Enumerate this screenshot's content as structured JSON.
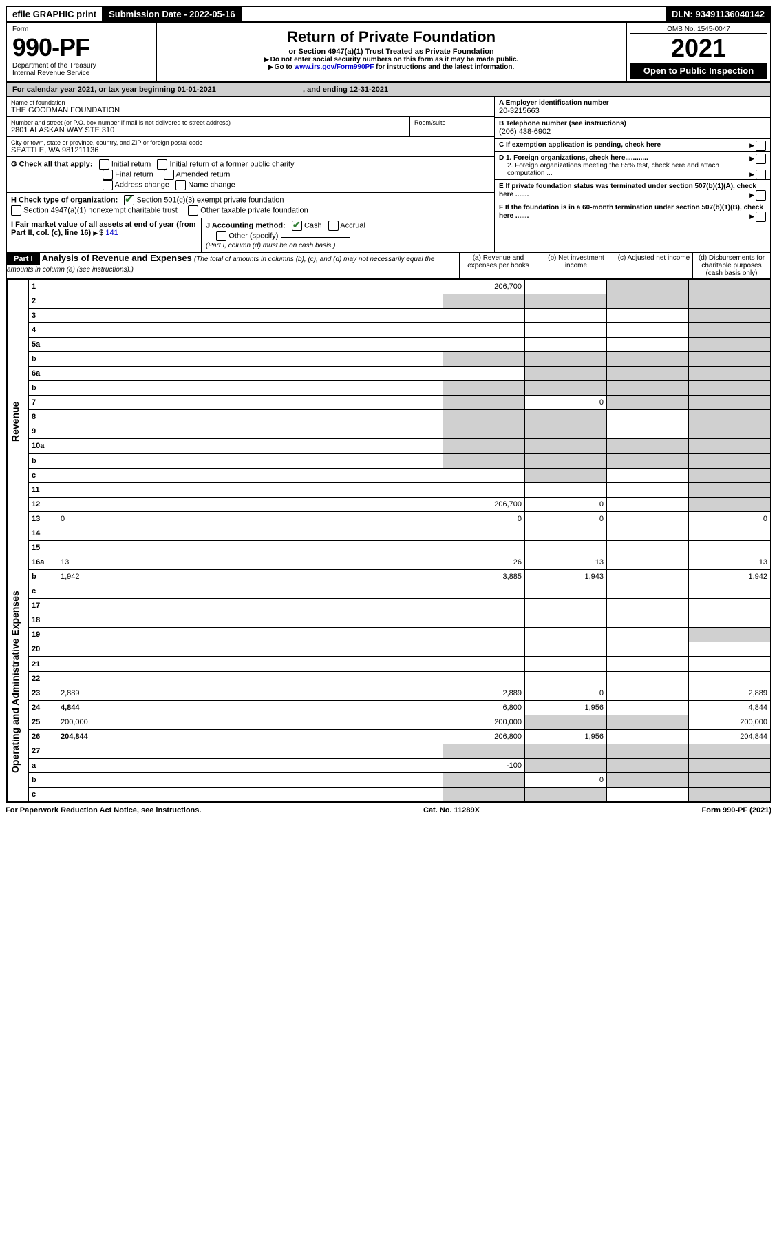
{
  "topbar": {
    "efile": "efile GRAPHIC print",
    "submission_label": "Submission Date - 2022-05-16",
    "dln": "DLN: 93491136040142"
  },
  "header": {
    "form_word": "Form",
    "form_number": "990-PF",
    "dept1": "Department of the Treasury",
    "dept2": "Internal Revenue Service",
    "title": "Return of Private Foundation",
    "subtitle": "or Section 4947(a)(1) Trust Treated as Private Foundation",
    "note1": "Do not enter social security numbers on this form as it may be made public.",
    "note2_pre": "Go to ",
    "note2_link": "www.irs.gov/Form990PF",
    "note2_post": " for instructions and the latest information.",
    "omb": "OMB No. 1545-0047",
    "year": "2021",
    "open": "Open to Public Inspection"
  },
  "calendar_line": {
    "text_a": "For calendar year 2021, or tax year beginning 01-01-2021",
    "text_b": ", and ending 12-31-2021"
  },
  "identity": {
    "name_label": "Name of foundation",
    "name": "THE GOODMAN FOUNDATION",
    "street_label": "Number and street (or P.O. box number if mail is not delivered to street address)",
    "street": "2801 ALASKAN WAY STE 310",
    "room_label": "Room/suite",
    "city_label": "City or town, state or province, country, and ZIP or foreign postal code",
    "city": "SEATTLE, WA  981211136",
    "ein_label": "A Employer identification number",
    "ein": "20-3215663",
    "phone_label": "B Telephone number (see instructions)",
    "phone": "(206) 438-6902",
    "c_label": "C If exemption application is pending, check here",
    "d1_label": "D 1. Foreign organizations, check here............",
    "d2_label": "2. Foreign organizations meeting the 85% test, check here and attach computation ...",
    "e_label": "E  If private foundation status was terminated under section 507(b)(1)(A), check here .......",
    "f_label": "F  If the foundation is in a 60-month termination under section 507(b)(1)(B), check here .......",
    "g_label": "G Check all that apply:",
    "g_opts": {
      "initial": "Initial return",
      "initial_former": "Initial return of a former public charity",
      "final": "Final return",
      "amended": "Amended return",
      "address": "Address change",
      "name": "Name change"
    },
    "h_label": "H Check type of organization:",
    "h_501c3": "Section 501(c)(3) exempt private foundation",
    "h_4947": "Section 4947(a)(1) nonexempt charitable trust",
    "h_other": "Other taxable private foundation",
    "i_label": "I Fair market value of all assets at end of year (from Part II, col. (c), line 16)",
    "i_value": "141",
    "j_label": "J Accounting method:",
    "j_cash": "Cash",
    "j_accrual": "Accrual",
    "j_other": "Other (specify)",
    "j_note": "(Part I, column (d) must be on cash basis.)"
  },
  "part1": {
    "label": "Part I",
    "title": "Analysis of Revenue and Expenses",
    "title_note": "(The total of amounts in columns (b), (c), and (d) may not necessarily equal the amounts in column (a) (see instructions).)",
    "col_a": "(a)  Revenue and expenses per books",
    "col_b": "(b)  Net investment income",
    "col_c": "(c)  Adjusted net income",
    "col_d": "(d)  Disbursements for charitable purposes (cash basis only)"
  },
  "side_labels": {
    "revenue": "Revenue",
    "opex": "Operating and Administrative Expenses"
  },
  "lines": [
    {
      "n": "1",
      "d": "",
      "a": "206,700",
      "b": "",
      "c": "",
      "d_shade": true,
      "c_shade": true
    },
    {
      "n": "2",
      "d": "",
      "a": "",
      "b": "",
      "c": "",
      "a_shade": true,
      "b_shade": true,
      "c_shade": true,
      "d_shade": true
    },
    {
      "n": "3",
      "d": "",
      "a": "",
      "b": "",
      "c": "",
      "d_shade": true
    },
    {
      "n": "4",
      "d": "",
      "a": "",
      "b": "",
      "c": "",
      "d_shade": true
    },
    {
      "n": "5a",
      "d": "",
      "a": "",
      "b": "",
      "c": "",
      "d_shade": true
    },
    {
      "n": "b",
      "d": "",
      "a": "",
      "b": "",
      "c": "",
      "a_shade": true,
      "b_shade": true,
      "c_shade": true,
      "d_shade": true
    },
    {
      "n": "6a",
      "d": "",
      "a": "",
      "b": "",
      "c": "",
      "b_shade": true,
      "c_shade": true,
      "d_shade": true
    },
    {
      "n": "b",
      "d": "",
      "a": "",
      "b": "",
      "c": "",
      "a_shade": true,
      "b_shade": true,
      "c_shade": true,
      "d_shade": true
    },
    {
      "n": "7",
      "d": "",
      "a": "",
      "b": "0",
      "c": "",
      "a_shade": true,
      "c_shade": true,
      "d_shade": true
    },
    {
      "n": "8",
      "d": "",
      "a": "",
      "b": "",
      "c": "",
      "a_shade": true,
      "b_shade": true,
      "d_shade": true
    },
    {
      "n": "9",
      "d": "",
      "a": "",
      "b": "",
      "c": "",
      "a_shade": true,
      "b_shade": true,
      "d_shade": true
    },
    {
      "n": "10a",
      "d": "",
      "a": "",
      "b": "",
      "c": "",
      "a_shade": true,
      "b_shade": true,
      "c_shade": true,
      "d_shade": true
    },
    {
      "n": "b",
      "d": "",
      "a": "",
      "b": "",
      "c": "",
      "a_shade": true,
      "b_shade": true,
      "c_shade": true,
      "d_shade": true
    },
    {
      "n": "c",
      "d": "",
      "a": "",
      "b": "",
      "c": "",
      "b_shade": true,
      "d_shade": true
    },
    {
      "n": "11",
      "d": "",
      "a": "",
      "b": "",
      "c": "",
      "d_shade": true
    },
    {
      "n": "12",
      "d": "",
      "bold": true,
      "a": "206,700",
      "b": "0",
      "c": "",
      "d_shade": true
    },
    {
      "n": "13",
      "d": "0",
      "a": "0",
      "b": "0",
      "c": ""
    },
    {
      "n": "14",
      "d": "",
      "a": "",
      "b": "",
      "c": ""
    },
    {
      "n": "15",
      "d": "",
      "a": "",
      "b": "",
      "c": ""
    },
    {
      "n": "16a",
      "d": "13",
      "a": "26",
      "b": "13",
      "c": ""
    },
    {
      "n": "b",
      "d": "1,942",
      "a": "3,885",
      "b": "1,943",
      "c": ""
    },
    {
      "n": "c",
      "d": "",
      "a": "",
      "b": "",
      "c": ""
    },
    {
      "n": "17",
      "d": "",
      "a": "",
      "b": "",
      "c": ""
    },
    {
      "n": "18",
      "d": "",
      "a": "",
      "b": "",
      "c": ""
    },
    {
      "n": "19",
      "d": "",
      "a": "",
      "b": "",
      "c": "",
      "d_shade": true
    },
    {
      "n": "20",
      "d": "",
      "a": "",
      "b": "",
      "c": ""
    },
    {
      "n": "21",
      "d": "",
      "a": "",
      "b": "",
      "c": ""
    },
    {
      "n": "22",
      "d": "",
      "a": "",
      "b": "",
      "c": ""
    },
    {
      "n": "23",
      "d": "2,889",
      "a": "2,889",
      "b": "0",
      "c": ""
    },
    {
      "n": "24",
      "d": "4,844",
      "bold": true,
      "a": "6,800",
      "b": "1,956",
      "c": ""
    },
    {
      "n": "25",
      "d": "200,000",
      "a": "200,000",
      "b": "",
      "c": "",
      "b_shade": true,
      "c_shade": true
    },
    {
      "n": "26",
      "d": "204,844",
      "bold": true,
      "a": "206,800",
      "b": "1,956",
      "c": ""
    },
    {
      "n": "27",
      "d": "",
      "a": "",
      "b": "",
      "c": "",
      "a_shade": true,
      "b_shade": true,
      "c_shade": true,
      "d_shade": true
    },
    {
      "n": "a",
      "d": "",
      "bold": true,
      "a": "-100",
      "b": "",
      "c": "",
      "b_shade": true,
      "c_shade": true,
      "d_shade": true
    },
    {
      "n": "b",
      "d": "",
      "bold": true,
      "a": "",
      "b": "0",
      "c": "",
      "a_shade": true,
      "c_shade": true,
      "d_shade": true
    },
    {
      "n": "c",
      "d": "",
      "bold": true,
      "a": "",
      "b": "",
      "c": "",
      "a_shade": true,
      "b_shade": true,
      "d_shade": true
    }
  ],
  "footer": {
    "left": "For Paperwork Reduction Act Notice, see instructions.",
    "mid": "Cat. No. 11289X",
    "right": "Form 990-PF (2021)"
  }
}
